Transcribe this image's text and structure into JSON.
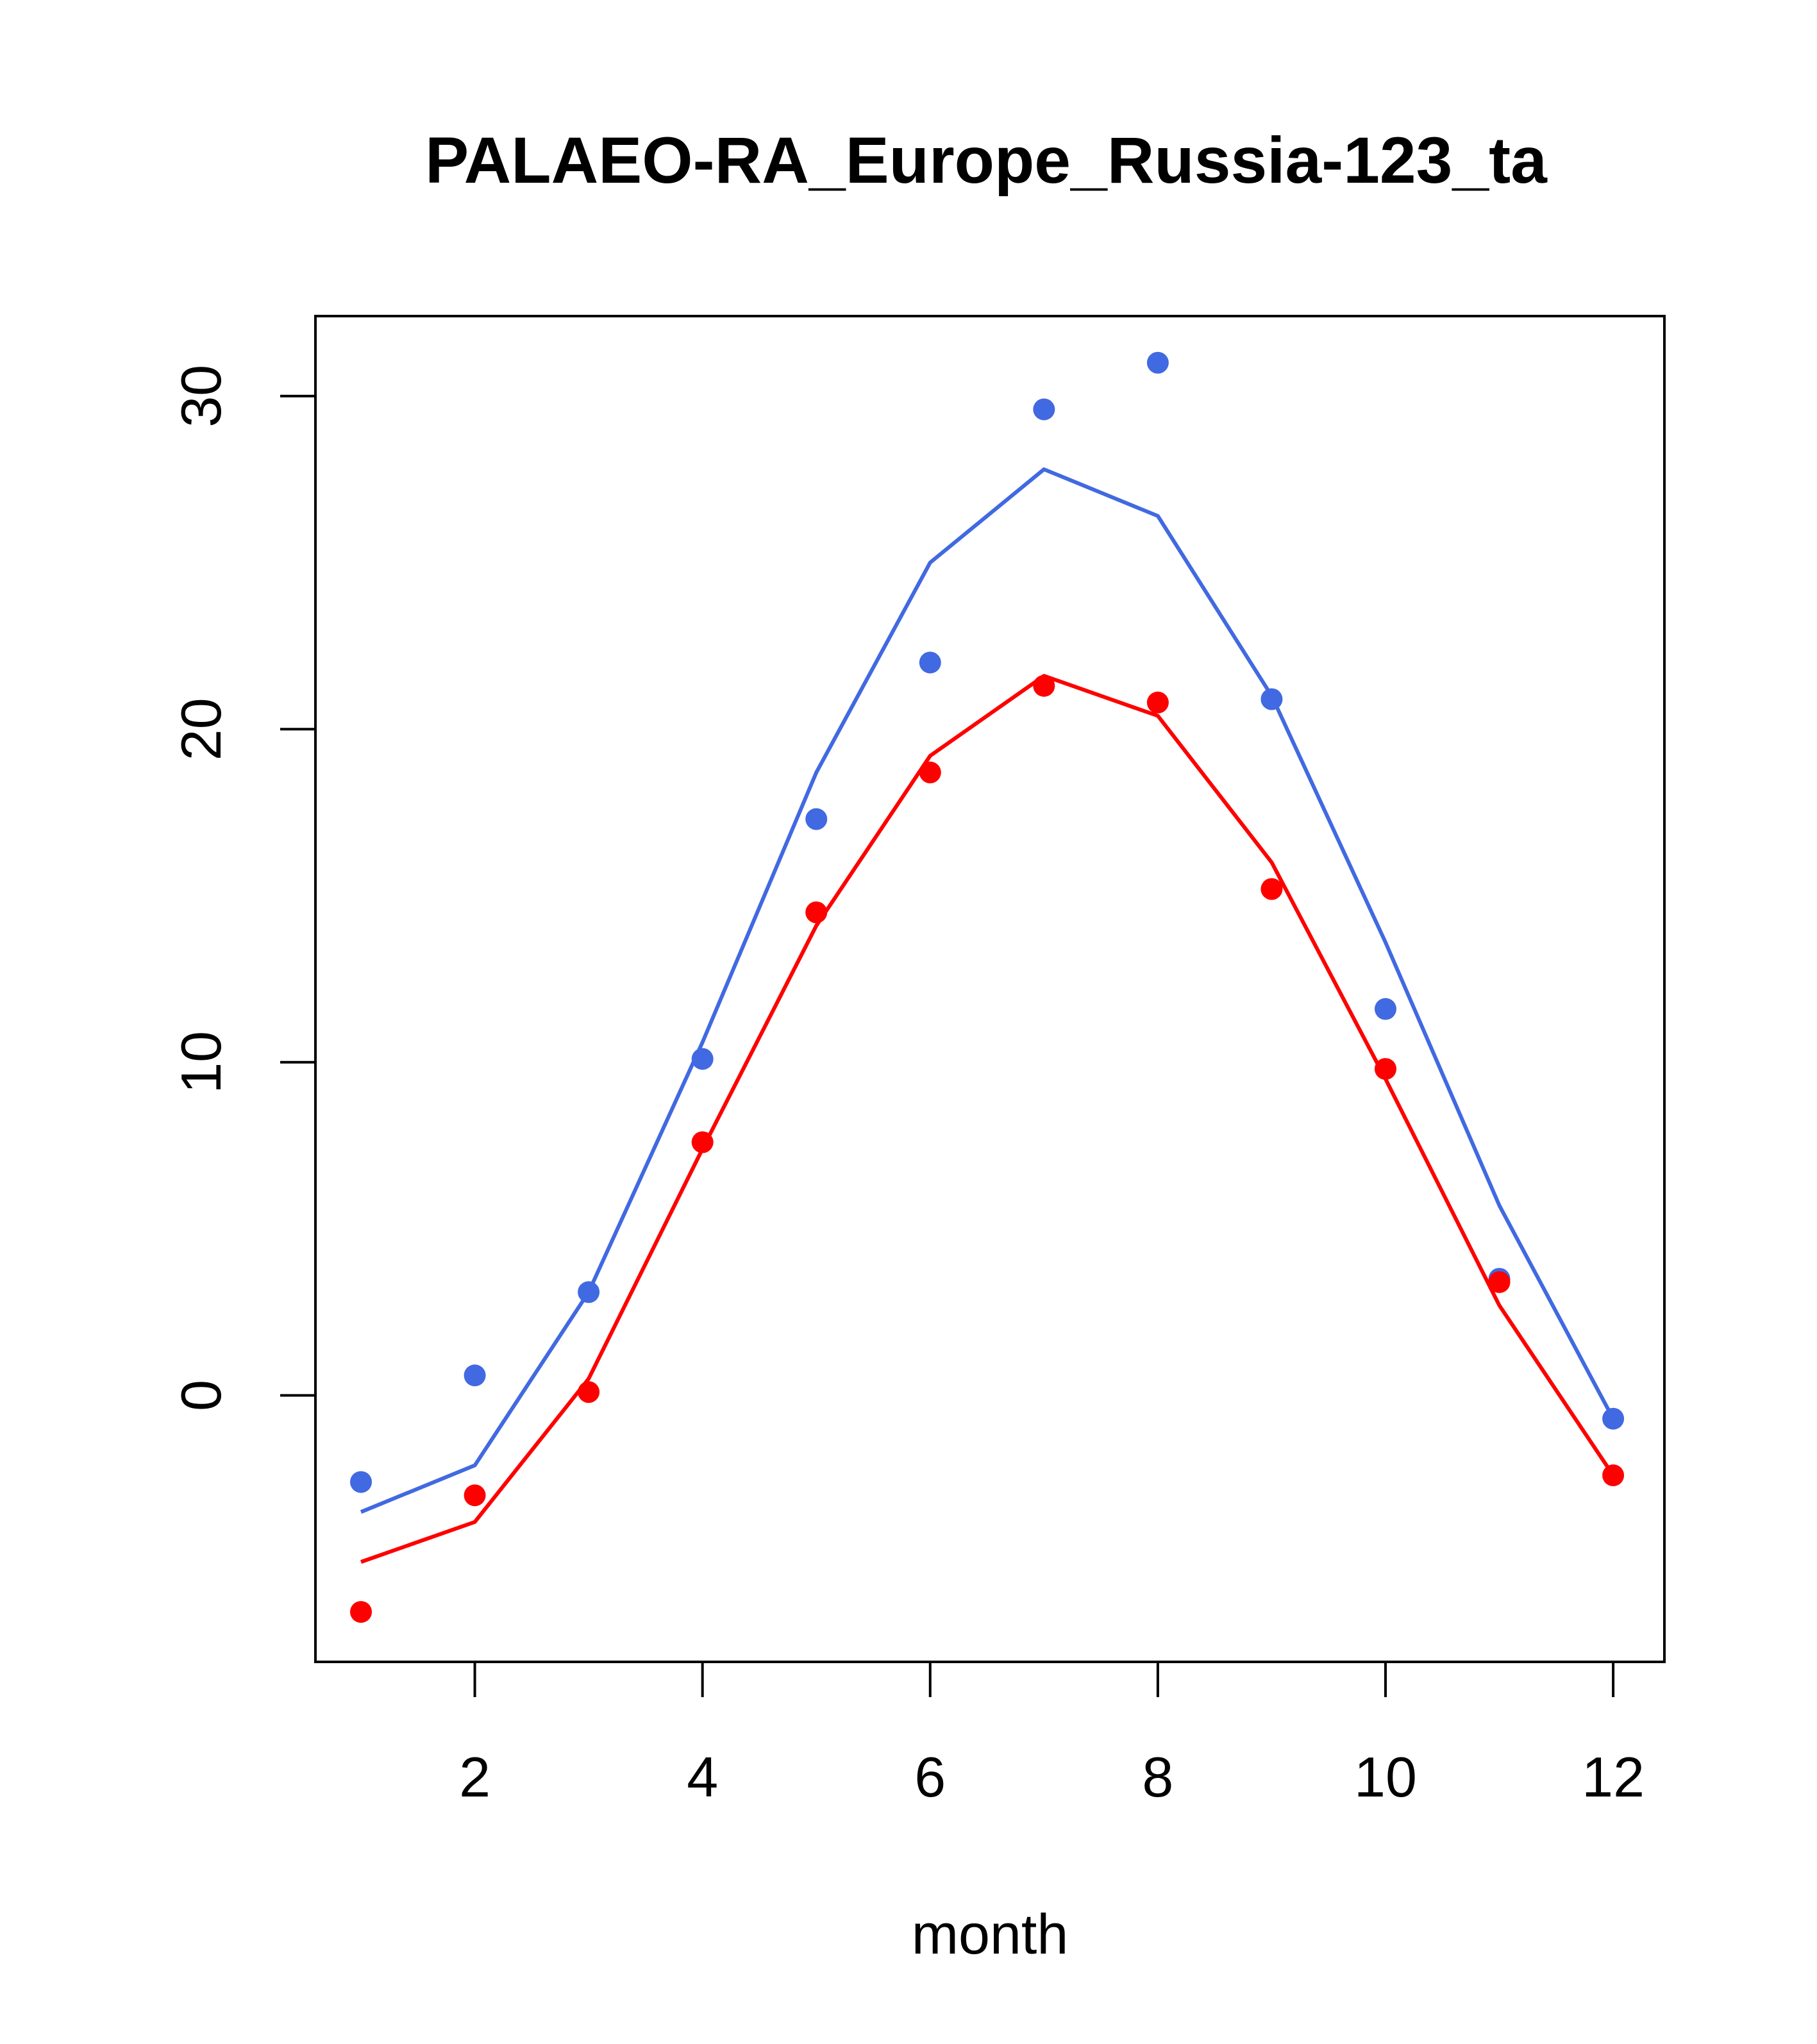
{
  "chart_data": {
    "type": "line",
    "title": "PALAEO-RA_Europe_Russia-123_ta",
    "xlabel": "month",
    "ylabel": "",
    "x": [
      1,
      2,
      3,
      4,
      5,
      6,
      7,
      8,
      9,
      10,
      11,
      12
    ],
    "xlim": [
      0.6,
      12.45
    ],
    "ylim": [
      -8,
      32.4
    ],
    "xticks": [
      2,
      4,
      6,
      8,
      10,
      12
    ],
    "yticks": [
      0,
      10,
      20,
      30
    ],
    "xtick_labels": [
      "2",
      "4",
      "6",
      "8",
      "10",
      "12"
    ],
    "ytick_labels": [
      "0",
      "10",
      "20",
      "30"
    ],
    "grid": false,
    "series": [
      {
        "name": "blue line",
        "kind": "line",
        "color": "#4169E1",
        "values": [
          -3.5,
          -2.1,
          3.1,
          10.6,
          18.7,
          25.0,
          27.8,
          26.4,
          21.0,
          13.6,
          5.7,
          -0.7
        ]
      },
      {
        "name": "blue points",
        "kind": "points",
        "color": "#4169E1",
        "values": [
          -2.6,
          0.6,
          3.1,
          10.1,
          17.3,
          22.0,
          29.6,
          31.0,
          20.9,
          11.6,
          3.5,
          -0.7
        ]
      },
      {
        "name": "red line",
        "kind": "line",
        "color": "#FF0000",
        "values": [
          -5.0,
          -3.8,
          0.5,
          7.4,
          14.1,
          19.2,
          21.6,
          20.4,
          16.0,
          9.5,
          2.7,
          -2.4
        ]
      },
      {
        "name": "red points",
        "kind": "points",
        "color": "#FF0000",
        "values": [
          -6.5,
          -3.0,
          0.1,
          7.6,
          14.5,
          18.7,
          21.3,
          20.8,
          15.2,
          9.8,
          3.4,
          -2.4
        ]
      }
    ]
  }
}
